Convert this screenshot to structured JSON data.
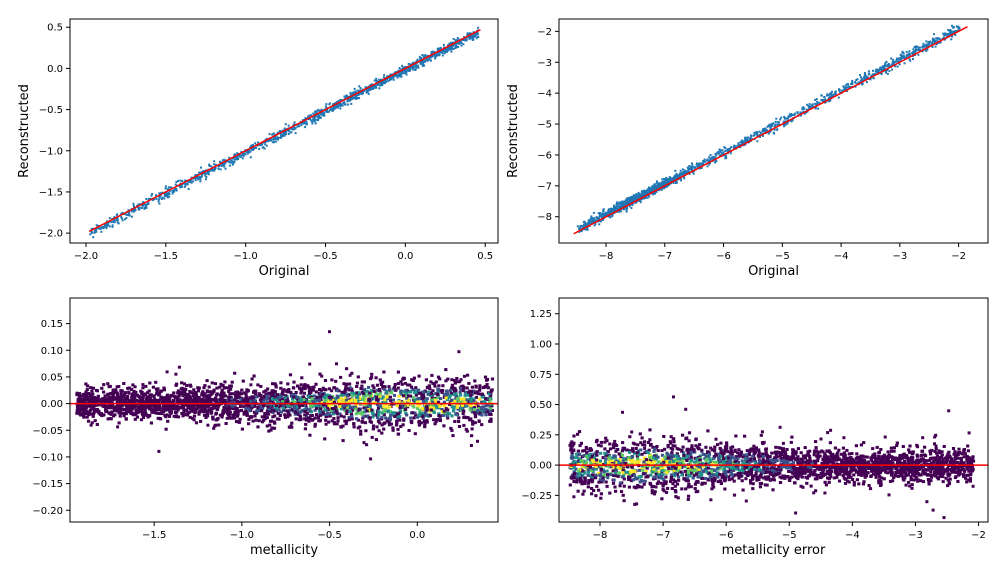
{
  "chart_data": [
    {
      "type": "scatter",
      "xlabel": "Original",
      "ylabel": "Reconstructed",
      "xlim": [
        -2.1,
        0.58
      ],
      "ylim": [
        -2.12,
        0.6
      ],
      "xticks": [
        -2.0,
        -1.5,
        -1.0,
        -0.5,
        0.0,
        0.5
      ],
      "xtick_labels": [
        "−2.0",
        "−1.5",
        "−1.0",
        "−0.5",
        "0.0",
        "0.5"
      ],
      "yticks": [
        -2.0,
        -1.5,
        -1.0,
        -0.5,
        0.0,
        0.5
      ],
      "ytick_labels": [
        "−2.0",
        "−1.5",
        "−1.0",
        "−0.5",
        "0.0",
        "0.5"
      ],
      "grid": false,
      "scatter_color": "#1f77b4",
      "reference_line": {
        "x": [
          -1.98,
          0.47
        ],
        "y": [
          -1.98,
          0.47
        ],
        "color": "#ff0000"
      },
      "point_band": {
        "x_range": [
          -1.98,
          0.45
        ],
        "slope": 1.0,
        "intercept": 0.0,
        "spread": 0.03,
        "extra_density_near": 0.0,
        "count": 1400
      }
    },
    {
      "type": "scatter",
      "xlabel": "Original",
      "ylabel": "Reconstructed",
      "xlim": [
        -8.8,
        -1.5
      ],
      "ylim": [
        -8.85,
        -1.6
      ],
      "xticks": [
        -8,
        -7,
        -6,
        -5,
        -4,
        -3,
        -2
      ],
      "xtick_labels": [
        "−8",
        "−7",
        "−6",
        "−5",
        "−4",
        "−3",
        "−2"
      ],
      "yticks": [
        -8,
        -7,
        -6,
        -5,
        -4,
        -3,
        -2
      ],
      "ytick_labels": [
        "−8",
        "−7",
        "−6",
        "−5",
        "−4",
        "−3",
        "−2"
      ],
      "grid": false,
      "scatter_color": "#1f77b4",
      "reference_line": {
        "x": [
          -8.55,
          -1.85
        ],
        "y": [
          -8.55,
          -1.85
        ],
        "color": "#ff0000"
      },
      "point_band": {
        "x_range": [
          -8.5,
          -2.0
        ],
        "slope": 1.0,
        "intercept": 0.12,
        "spread": 0.08,
        "extra_density_near": -7.5,
        "count": 1600
      }
    },
    {
      "type": "heatmap",
      "xlabel": "metallicity",
      "ylabel": "",
      "xlim": [
        -1.98,
        0.46
      ],
      "ylim": [
        -0.222,
        0.198
      ],
      "xticks": [
        -1.5,
        -1.0,
        -0.5,
        0.0
      ],
      "xtick_labels": [
        "−1.5",
        "−1.0",
        "−0.5",
        "0.0"
      ],
      "yticks": [
        -0.2,
        -0.15,
        -0.1,
        -0.05,
        0.0,
        0.05,
        0.1,
        0.15
      ],
      "ytick_labels": [
        "−0.20",
        "−0.15",
        "−0.10",
        "−0.05",
        "0.00",
        "0.05",
        "0.10",
        "0.15"
      ],
      "grid": false,
      "colormap": [
        "#440154",
        "#3b528b",
        "#21918c",
        "#5ec962",
        "#fde725"
      ],
      "reference_line": {
        "y": 0.0,
        "color": "#ff0000"
      },
      "density_center": 0.0,
      "density_peak_x": -0.1,
      "scatter_extent": [
        -1.95,
        0.42
      ]
    },
    {
      "type": "heatmap",
      "xlabel": "metallicity error",
      "ylabel": "",
      "xlim": [
        -8.65,
        -1.85
      ],
      "ylim": [
        -0.47,
        1.38
      ],
      "xticks": [
        -8,
        -7,
        -6,
        -5,
        -4,
        -3,
        -2
      ],
      "xtick_labels": [
        "−8",
        "−7",
        "−6",
        "−5",
        "−4",
        "−3",
        "−2"
      ],
      "yticks": [
        -0.25,
        0.0,
        0.25,
        0.5,
        0.75,
        1.0,
        1.25
      ],
      "ytick_labels": [
        "−0.25",
        "0.00",
        "0.25",
        "0.50",
        "0.75",
        "1.00",
        "1.25"
      ],
      "grid": false,
      "colormap": [
        "#440154",
        "#3b528b",
        "#21918c",
        "#5ec962",
        "#fde725"
      ],
      "reference_line": {
        "y": 0.0,
        "color": "#ff0000"
      },
      "density_center": 0.0,
      "density_peak_x": -7.5,
      "scatter_extent": [
        -8.5,
        -2.1
      ]
    }
  ]
}
